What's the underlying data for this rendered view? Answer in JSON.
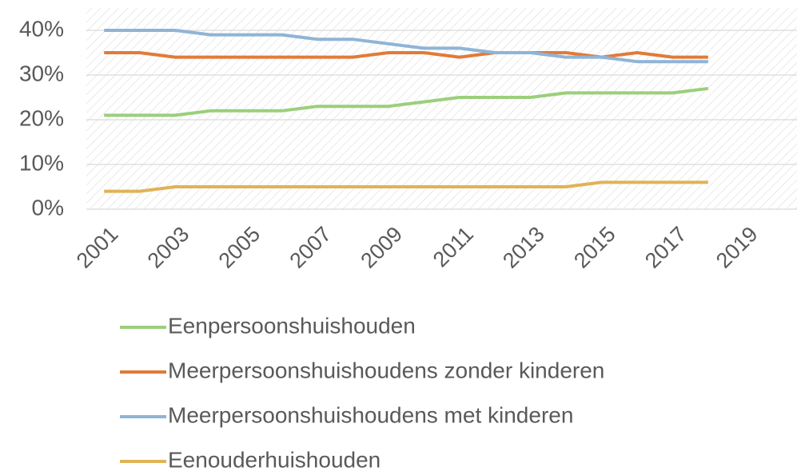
{
  "chart_data": {
    "type": "line",
    "x": [
      2001,
      2002,
      2003,
      2004,
      2005,
      2006,
      2007,
      2008,
      2009,
      2010,
      2011,
      2012,
      2013,
      2014,
      2015,
      2016,
      2017,
      2018
    ],
    "series": [
      {
        "name": "Eenpersoonshuishouden",
        "color": "#9bcf7c",
        "values": [
          21,
          21,
          21,
          22,
          22,
          22,
          23,
          23,
          23,
          24,
          25,
          25,
          25,
          26,
          26,
          26,
          26,
          27
        ]
      },
      {
        "name": "Meerpersoonshuishoudens zonder kinderen",
        "color": "#e07b39",
        "values": [
          35,
          35,
          34,
          34,
          34,
          34,
          34,
          34,
          35,
          35,
          34,
          35,
          35,
          35,
          34,
          35,
          34,
          34
        ]
      },
      {
        "name": "Meerpersoonshuishoudens met kinderen",
        "color": "#8fb4d6",
        "values": [
          40,
          40,
          40,
          39,
          39,
          39,
          38,
          38,
          37,
          36,
          36,
          35,
          35,
          34,
          34,
          33,
          33,
          33
        ]
      },
      {
        "name": "Eenouderhuishouden",
        "color": "#e0b356",
        "values": [
          4,
          4,
          5,
          5,
          5,
          5,
          5,
          5,
          5,
          5,
          5,
          5,
          5,
          5,
          6,
          6,
          6,
          6
        ]
      }
    ],
    "xlim": [
      2000.5,
      2020.5
    ],
    "xticks": [
      2001,
      2003,
      2005,
      2007,
      2009,
      2011,
      2013,
      2015,
      2017,
      2019
    ],
    "ylim": [
      0,
      45
    ],
    "yticks": [
      {
        "value": 0,
        "label": "0%"
      },
      {
        "value": 10,
        "label": "10%"
      },
      {
        "value": 20,
        "label": "20%"
      },
      {
        "value": 30,
        "label": "30%"
      },
      {
        "value": 40,
        "label": "40%"
      }
    ],
    "grid": true,
    "legend": "bottom"
  }
}
